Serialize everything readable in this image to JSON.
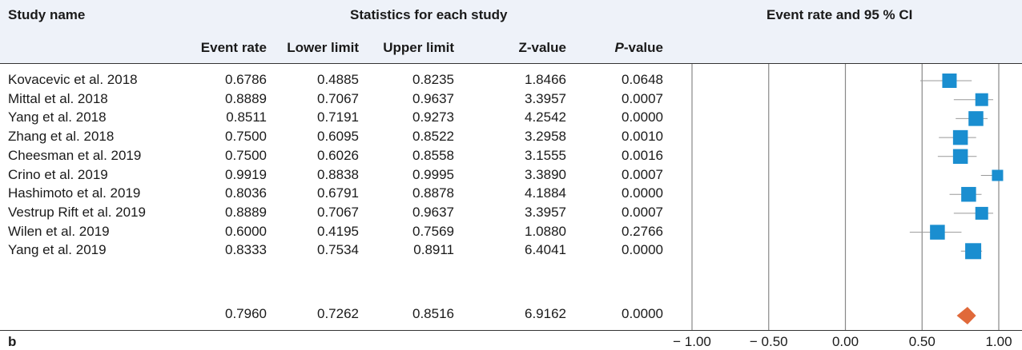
{
  "headers": {
    "study_name": "Study name",
    "statistics": "Statistics for each study",
    "forest": "Event rate and 95 % CI"
  },
  "columns": [
    {
      "key": "event_rate",
      "label": "Event rate"
    },
    {
      "key": "lower_limit",
      "label": "Lower limit"
    },
    {
      "key": "upper_limit",
      "label": "Upper limit"
    },
    {
      "key": "z_value",
      "label": "Z-value"
    },
    {
      "key": "p_value",
      "label_prefix": "P",
      "label_suffix": "-value"
    }
  ],
  "panel_label": "b",
  "chart_data": {
    "type": "forest",
    "xlim": [
      -1.0,
      1.0
    ],
    "x_ticks": [
      "− 1.00",
      "− 0.50",
      "0.00",
      "0.50",
      "1.00"
    ],
    "x_tick_values": [
      -1.0,
      -0.5,
      0.0,
      0.5,
      1.0
    ],
    "marker_color": "#1a8ed0",
    "summary_color": "#e0693a",
    "studies": [
      {
        "name": "Kovacevic et al. 2018",
        "event_rate": "0.6786",
        "lower": "0.4885",
        "upper": "0.8235",
        "z": "1.8466",
        "p": "0.0648",
        "weight": 0.8
      },
      {
        "name": "Mittal et al. 2018",
        "event_rate": "0.8889",
        "lower": "0.7067",
        "upper": "0.9637",
        "z": "3.3957",
        "p": "0.0007",
        "weight": 0.6
      },
      {
        "name": "Yang et al. 2018",
        "event_rate": "0.8511",
        "lower": "0.7191",
        "upper": "0.9273",
        "z": "4.2542",
        "p": "0.0000",
        "weight": 0.85
      },
      {
        "name": "Zhang et al. 2018",
        "event_rate": "0.7500",
        "lower": "0.6095",
        "upper": "0.8522",
        "z": "3.2958",
        "p": "0.0010",
        "weight": 0.85
      },
      {
        "name": "Cheesman et al. 2019",
        "event_rate": "0.7500",
        "lower": "0.6026",
        "upper": "0.8558",
        "z": "3.1555",
        "p": "0.0016",
        "weight": 0.85
      },
      {
        "name": "Crino et al. 2019",
        "event_rate": "0.9919",
        "lower": "0.8838",
        "upper": "0.9995",
        "z": "3.3890",
        "p": "0.0007",
        "weight": 0.4
      },
      {
        "name": "Hashimoto et al. 2019",
        "event_rate": "0.8036",
        "lower": "0.6791",
        "upper": "0.8878",
        "z": "4.1884",
        "p": "0.0000",
        "weight": 0.85
      },
      {
        "name": "Vestrup Rift et al. 2019",
        "event_rate": "0.8889",
        "lower": "0.7067",
        "upper": "0.9637",
        "z": "3.3957",
        "p": "0.0007",
        "weight": 0.6
      },
      {
        "name": "Wilen et al. 2019",
        "event_rate": "0.6000",
        "lower": "0.4195",
        "upper": "0.7569",
        "z": "1.0880",
        "p": "0.2766",
        "weight": 0.85
      },
      {
        "name": "Yang et al. 2019",
        "event_rate": "0.8333",
        "lower": "0.7534",
        "upper": "0.8911",
        "z": "6.4041",
        "p": "0.0000",
        "weight": 1.0
      }
    ],
    "summary": {
      "event_rate": "0.7960",
      "lower": "0.7262",
      "upper": "0.8516",
      "z": "6.9162",
      "p": "0.0000"
    }
  }
}
